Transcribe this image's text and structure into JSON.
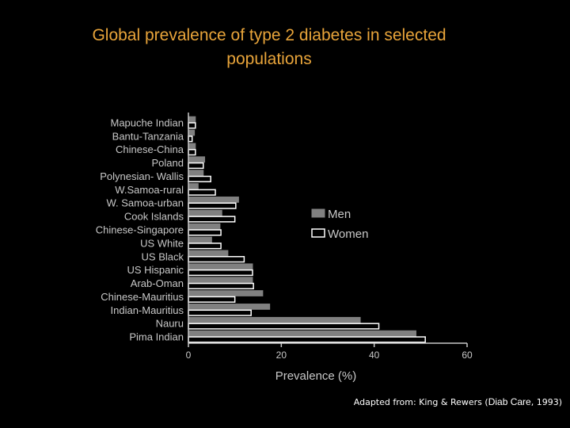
{
  "title_line1": "Global prevalence of type 2 diabetes in selected",
  "title_line2": "populations",
  "source": {
    "prefix": "Adapted from: King & Rewers (",
    "journal": "Diab Care",
    "suffix": ", 1993)"
  },
  "colors": {
    "title": "#e8a43a",
    "men": "#808080",
    "women": "#000000",
    "axis": "#c8c8c8",
    "text": "#c8c8c8"
  },
  "chart_data": {
    "type": "bar",
    "orientation": "horizontal",
    "categories": [
      "Mapuche Indian",
      "Bantu-Tanzania",
      "Chinese-China",
      "Poland",
      "Polynesian- Wallis",
      "W.Samoa-rural",
      "W. Samoa-urban",
      "Cook Islands",
      "Chinese-Singapore",
      "US White",
      "US Black",
      "US Hispanic",
      "Arab-Oman",
      "Chinese-Mauritius",
      "Indian-Mauritius",
      "Nauru",
      "Pima Indian"
    ],
    "series": [
      {
        "name": "Men",
        "values": [
          1.5,
          1.3,
          1.5,
          3.5,
          3.2,
          2.1,
          10.8,
          7.2,
          6.8,
          5.0,
          8.5,
          13.8,
          13.8,
          16.0,
          17.5,
          37.0,
          49.0
        ]
      },
      {
        "name": "Women",
        "values": [
          1.5,
          0.8,
          1.5,
          3.2,
          4.8,
          5.8,
          10.2,
          10.0,
          7.0,
          7.0,
          12.0,
          13.8,
          14.0,
          10.0,
          13.5,
          41.0,
          51.0
        ]
      }
    ],
    "xlabel": "Prevalence (%)",
    "ylabel": "",
    "xlim": [
      0,
      60
    ],
    "xticks": [
      0,
      20,
      40,
      60
    ],
    "grid": false,
    "legend_position": "right"
  }
}
